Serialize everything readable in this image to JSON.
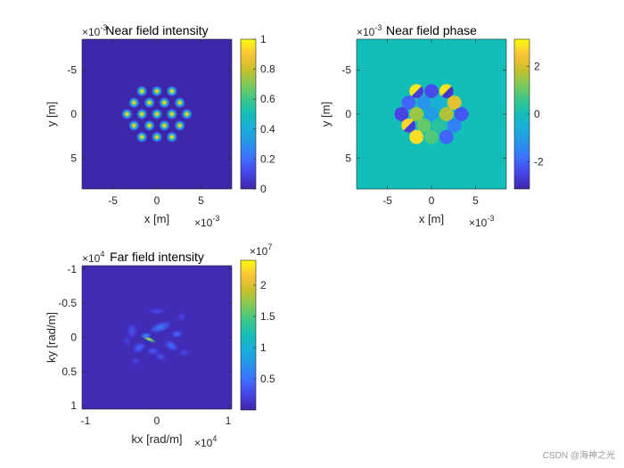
{
  "colors": {
    "background": "#ffffff",
    "parula_dark": "#3e26a8",
    "parula_teal": "#13beb8",
    "parula_yellow": "#f9fb0e"
  },
  "watermark": "CSDN @海神之光",
  "chart_data": [
    {
      "type": "heatmap",
      "title": "Near field intensity",
      "xlabel": "x [m]",
      "ylabel": "y [m]",
      "x_multiplier": "×10",
      "x_exponent": "-3",
      "y_multiplier": "×10",
      "y_exponent": "-3",
      "xlim": [
        -8.5,
        8.5
      ],
      "ylim": [
        -8.5,
        8.5
      ],
      "y_reversed": true,
      "xticks": [
        -5,
        0,
        5
      ],
      "xtick_labels": [
        "-5",
        "0",
        "5"
      ],
      "yticks": [
        -5,
        0,
        5
      ],
      "ytick_labels": [
        "-5",
        "0",
        "5"
      ],
      "colorbar": {
        "range": [
          0,
          1
        ],
        "ticks": [
          0,
          0.2,
          0.4,
          0.6,
          0.8,
          1
        ],
        "tick_labels": [
          "0",
          "0.2",
          "0.4",
          "0.6",
          "0.8",
          "1"
        ]
      },
      "colormap": "parula",
      "background_value": 0,
      "pattern": "hexagonal array of 19 Gaussian spots",
      "spot_peak": 1,
      "spots": [
        [
          -1.7,
          -2.6
        ],
        [
          0,
          -2.6
        ],
        [
          1.7,
          -2.6
        ],
        [
          -2.6,
          -1.3
        ],
        [
          -0.85,
          -1.3
        ],
        [
          0.85,
          -1.3
        ],
        [
          2.6,
          -1.3
        ],
        [
          -3.4,
          0
        ],
        [
          -1.7,
          0
        ],
        [
          0,
          0
        ],
        [
          1.7,
          0
        ],
        [
          3.4,
          0
        ],
        [
          -2.6,
          1.3
        ],
        [
          -0.85,
          1.3
        ],
        [
          0.85,
          1.3
        ],
        [
          2.6,
          1.3
        ],
        [
          -1.7,
          2.6
        ],
        [
          0,
          2.6
        ],
        [
          1.7,
          2.6
        ]
      ]
    },
    {
      "type": "heatmap",
      "title": "Near field phase",
      "xlabel": "x [m]",
      "ylabel": "y [m]",
      "x_multiplier": "×10",
      "x_exponent": "-3",
      "y_multiplier": "×10",
      "y_exponent": "-3",
      "xlim": [
        -8.5,
        8.5
      ],
      "ylim": [
        -8.5,
        8.5
      ],
      "y_reversed": true,
      "xticks": [
        -5,
        0,
        5
      ],
      "xtick_labels": [
        "-5",
        "0",
        "5"
      ],
      "yticks": [
        -5,
        0,
        5
      ],
      "ytick_labels": [
        "-5",
        "0",
        "5"
      ],
      "colorbar": {
        "range": [
          -3.14,
          3.14
        ],
        "ticks": [
          -2,
          0,
          2
        ],
        "tick_labels": [
          "-2",
          "0",
          "2"
        ]
      },
      "colormap": "parula",
      "background_value": 0,
      "spot_radius": 0.8,
      "spots": [
        {
          "x": -1.7,
          "y": -2.6,
          "phase": 2.9,
          "split": -2.6
        },
        {
          "x": 0,
          "y": -2.6,
          "phase": -2.4
        },
        {
          "x": 1.7,
          "y": -2.6,
          "phase": 2.9,
          "split": -2.8
        },
        {
          "x": -2.6,
          "y": -1.3,
          "phase": -2.0
        },
        {
          "x": -0.85,
          "y": -1.3,
          "phase": -1.2
        },
        {
          "x": 0.85,
          "y": -1.3,
          "phase": -0.5
        },
        {
          "x": 2.6,
          "y": -1.3,
          "phase": 2.2
        },
        {
          "x": -3.4,
          "y": 0,
          "phase": -2.5
        },
        {
          "x": -1.7,
          "y": 0,
          "phase": 1.5
        },
        {
          "x": 0,
          "y": 0,
          "phase": -1.0
        },
        {
          "x": 1.7,
          "y": 0,
          "phase": 1.7
        },
        {
          "x": 3.4,
          "y": 0,
          "phase": -2.2
        },
        {
          "x": -2.6,
          "y": 1.3,
          "phase": 2.7,
          "split": -2.6
        },
        {
          "x": -0.85,
          "y": 1.3,
          "phase": 1.0
        },
        {
          "x": 0.85,
          "y": 1.3,
          "phase": 0.3
        },
        {
          "x": 2.6,
          "y": 1.3,
          "phase": -1.5
        },
        {
          "x": -1.7,
          "y": 2.6,
          "phase": 2.8
        },
        {
          "x": 0,
          "y": 2.6,
          "phase": 0.8
        },
        {
          "x": 1.7,
          "y": 2.6,
          "phase": -2.0
        }
      ]
    },
    {
      "type": "heatmap",
      "title": "Far field intensity",
      "xlabel": "kx [rad/m]",
      "ylabel": "ky [rad/m]",
      "x_multiplier": "×10",
      "x_exponent": "4",
      "y_multiplier": "×10",
      "y_exponent": "4",
      "xlim": [
        -1.05,
        1.05
      ],
      "ylim": [
        -1.05,
        1.05
      ],
      "y_reversed": true,
      "xticks": [
        -1,
        0,
        1
      ],
      "xtick_labels": [
        "-1",
        "0",
        "1"
      ],
      "yticks": [
        -1,
        -0.5,
        0,
        0.5,
        1
      ],
      "ytick_labels": [
        "-1",
        "-0.5",
        "0",
        "0.5",
        "1"
      ],
      "colorbar": {
        "range": [
          0,
          2.4
        ],
        "ticks": [
          0.5,
          1,
          1.5,
          2
        ],
        "tick_labels": [
          "0.5",
          "1",
          "1.5",
          "2"
        ],
        "multiplier": "×10",
        "exponent": "7"
      },
      "colormap": "parula",
      "background_value": 0.05,
      "peak_value": 2.35,
      "blobs": [
        {
          "x": -0.12,
          "y": 0.02,
          "sx": 0.09,
          "sy": 0.022,
          "angle": 25,
          "v": 2.35
        },
        {
          "x": -0.15,
          "y": -0.03,
          "sx": 0.05,
          "sy": 0.03,
          "angle": 0,
          "v": 0.7
        },
        {
          "x": 0.05,
          "y": -0.15,
          "sx": 0.12,
          "sy": 0.05,
          "angle": -20,
          "v": 0.6
        },
        {
          "x": 0.28,
          "y": -0.05,
          "sx": 0.06,
          "sy": 0.04,
          "angle": 0,
          "v": 0.5
        },
        {
          "x": 0.2,
          "y": 0.12,
          "sx": 0.08,
          "sy": 0.05,
          "angle": 30,
          "v": 0.5
        },
        {
          "x": -0.25,
          "y": 0.15,
          "sx": 0.08,
          "sy": 0.05,
          "angle": -30,
          "v": 0.45
        },
        {
          "x": -0.05,
          "y": 0.2,
          "sx": 0.07,
          "sy": 0.04,
          "angle": 0,
          "v": 0.4
        },
        {
          "x": 0.05,
          "y": 0.28,
          "sx": 0.06,
          "sy": 0.04,
          "angle": 20,
          "v": 0.35
        },
        {
          "x": -0.35,
          "y": -0.1,
          "sx": 0.06,
          "sy": 0.08,
          "angle": 0,
          "v": 0.35
        },
        {
          "x": 0.38,
          "y": 0.22,
          "sx": 0.05,
          "sy": 0.04,
          "angle": 0,
          "v": 0.3
        },
        {
          "x": 0.0,
          "y": -0.38,
          "sx": 0.1,
          "sy": 0.03,
          "angle": 0,
          "v": 0.3
        },
        {
          "x": -0.3,
          "y": 0.35,
          "sx": 0.05,
          "sy": 0.04,
          "angle": 0,
          "v": 0.25
        },
        {
          "x": 0.35,
          "y": -0.3,
          "sx": 0.05,
          "sy": 0.05,
          "angle": 0,
          "v": 0.25
        },
        {
          "x": -0.42,
          "y": 0.05,
          "sx": 0.04,
          "sy": 0.06,
          "angle": 0,
          "v": 0.25
        }
      ]
    }
  ]
}
